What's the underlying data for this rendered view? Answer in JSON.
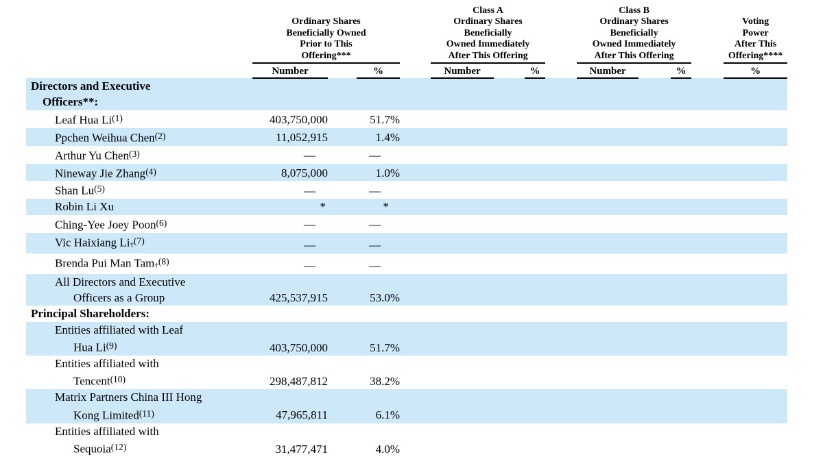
{
  "colors": {
    "row_stripe": "#cde8f8",
    "text": "#000000",
    "rule": "#000000"
  },
  "table": {
    "column_groups": [
      {
        "title": "Ordinary Shares\nBeneficially Owned\nPrior to This\nOffering***",
        "columns": [
          "Number",
          "%"
        ]
      },
      {
        "title": "Class A\nOrdinary Shares\nBeneficially\nOwned Immediately\nAfter This Offering",
        "columns": [
          "Number",
          "%"
        ]
      },
      {
        "title": "Class B\nOrdinary Shares\nBeneficially\nOwned Immediately\nAfter This Offering",
        "columns": [
          "Number",
          "%"
        ]
      },
      {
        "title": "Voting\nPower\nAfter This\nOffering****",
        "columns": [
          "%"
        ]
      }
    ],
    "rows": [
      {
        "type": "section",
        "striped": true,
        "lines": [
          "Directors and Executive",
          "Officers**:"
        ],
        "prior_number": "",
        "prior_pct": "",
        "classA_number": "",
        "classA_pct": "",
        "classB_number": "",
        "classB_pct": "",
        "voting_pct": ""
      },
      {
        "type": "item",
        "striped": false,
        "lines": [
          "Leaf Hua Li"
        ],
        "note": "(1)",
        "prior_number": "403,750,000",
        "prior_pct": "51.7%",
        "classA_number": "",
        "classA_pct": "",
        "classB_number": "",
        "classB_pct": "",
        "voting_pct": ""
      },
      {
        "type": "item",
        "striped": true,
        "lines": [
          "Ppchen Weihua Chen"
        ],
        "note": "(2)",
        "prior_number": "11,052,915",
        "prior_pct": "1.4%",
        "classA_number": "",
        "classA_pct": "",
        "classB_number": "",
        "classB_pct": "",
        "voting_pct": ""
      },
      {
        "type": "item",
        "striped": false,
        "lines": [
          "Arthur Yu Chen"
        ],
        "note": "(3)",
        "prior_number": "—",
        "prior_pct": "—",
        "classA_number": "",
        "classA_pct": "",
        "classB_number": "",
        "classB_pct": "",
        "voting_pct": ""
      },
      {
        "type": "item",
        "striped": true,
        "lines": [
          "Nineway Jie Zhang"
        ],
        "note": "(4)",
        "prior_number": "8,075,000",
        "prior_pct": "1.0%",
        "classA_number": "",
        "classA_pct": "",
        "classB_number": "",
        "classB_pct": "",
        "voting_pct": ""
      },
      {
        "type": "item",
        "striped": false,
        "lines": [
          "Shan Lu"
        ],
        "note": "(5)",
        "prior_number": "—",
        "prior_pct": "—",
        "classA_number": "",
        "classA_pct": "",
        "classB_number": "",
        "classB_pct": "",
        "voting_pct": ""
      },
      {
        "type": "item",
        "striped": true,
        "lines": [
          "Robin Li Xu"
        ],
        "prior_number": "*",
        "prior_pct": "*",
        "classA_number": "",
        "classA_pct": "",
        "classB_number": "",
        "classB_pct": "",
        "voting_pct": ""
      },
      {
        "type": "item",
        "striped": false,
        "lines": [
          "Ching-Yee Joey Poon"
        ],
        "note": "(6)",
        "prior_number": "—",
        "prior_pct": "—",
        "classA_number": "",
        "classA_pct": "",
        "classB_number": "",
        "classB_pct": "",
        "voting_pct": ""
      },
      {
        "type": "item",
        "striped": true,
        "lines": [
          "Vic Haixiang Li"
        ],
        "dagger": true,
        "note": "(7)",
        "prior_number": "—",
        "prior_pct": "—",
        "classA_number": "",
        "classA_pct": "",
        "classB_number": "",
        "classB_pct": "",
        "voting_pct": ""
      },
      {
        "type": "item",
        "striped": false,
        "lines": [
          "Brenda Pui Man Tam"
        ],
        "dagger": true,
        "note": "(8)",
        "prior_number": "—",
        "prior_pct": "—",
        "classA_number": "",
        "classA_pct": "",
        "classB_number": "",
        "classB_pct": "",
        "voting_pct": ""
      },
      {
        "type": "item",
        "striped": true,
        "lines": [
          "All Directors and Executive",
          "Officers as a Group"
        ],
        "prior_number": "425,537,915",
        "prior_pct": "53.0%",
        "classA_number": "",
        "classA_pct": "",
        "classB_number": "",
        "classB_pct": "",
        "voting_pct": ""
      },
      {
        "type": "section",
        "striped": false,
        "lines": [
          "Principal Shareholders:"
        ],
        "prior_number": "",
        "prior_pct": "",
        "classA_number": "",
        "classA_pct": "",
        "classB_number": "",
        "classB_pct": "",
        "voting_pct": ""
      },
      {
        "type": "item",
        "striped": true,
        "lines": [
          "Entities affiliated with Leaf",
          "Hua Li"
        ],
        "note": "(9)",
        "prior_number": "403,750,000",
        "prior_pct": "51.7%",
        "classA_number": "",
        "classA_pct": "",
        "classB_number": "",
        "classB_pct": "",
        "voting_pct": ""
      },
      {
        "type": "item",
        "striped": false,
        "lines": [
          "Entities affiliated with",
          "Tencent"
        ],
        "note": "(10)",
        "prior_number": "298,487,812",
        "prior_pct": "38.2%",
        "classA_number": "",
        "classA_pct": "",
        "classB_number": "",
        "classB_pct": "",
        "voting_pct": ""
      },
      {
        "type": "item",
        "striped": true,
        "lines": [
          "Matrix Partners China III Hong",
          "Kong Limited"
        ],
        "note": "(11)",
        "prior_number": "47,965,811",
        "prior_pct": "6.1%",
        "classA_number": "",
        "classA_pct": "",
        "classB_number": "",
        "classB_pct": "",
        "voting_pct": ""
      },
      {
        "type": "item",
        "striped": false,
        "lines": [
          "Entities affiliated with",
          "Sequoia"
        ],
        "note": "(12)",
        "prior_number": "31,477,471",
        "prior_pct": "4.0%",
        "classA_number": "",
        "classA_pct": "",
        "classB_number": "",
        "classB_pct": "",
        "voting_pct": ""
      }
    ]
  }
}
